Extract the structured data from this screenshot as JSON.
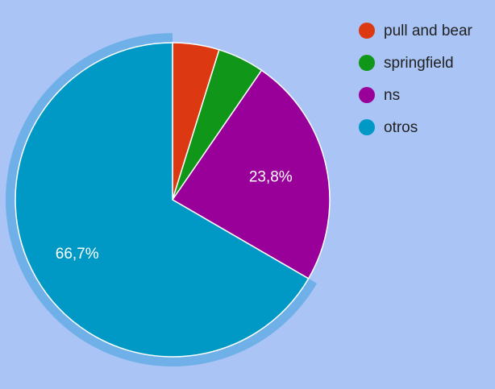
{
  "chart_data": {
    "type": "pie",
    "title": "",
    "categories": [
      "pull and bear",
      "springfield",
      "ns",
      "otros"
    ],
    "values": [
      4.8,
      4.8,
      23.8,
      66.7
    ],
    "labels": [
      "",
      "",
      "23,8%",
      "66,7%"
    ],
    "colors": [
      "#dc3912",
      "#109618",
      "#990099",
      "#0099c6"
    ],
    "highlighted_slice": "otros",
    "legend_position": "right",
    "start_angle_deg": 0
  },
  "page": {
    "background": "#a9c4f5",
    "highlight_color": "#6fb0e8"
  }
}
